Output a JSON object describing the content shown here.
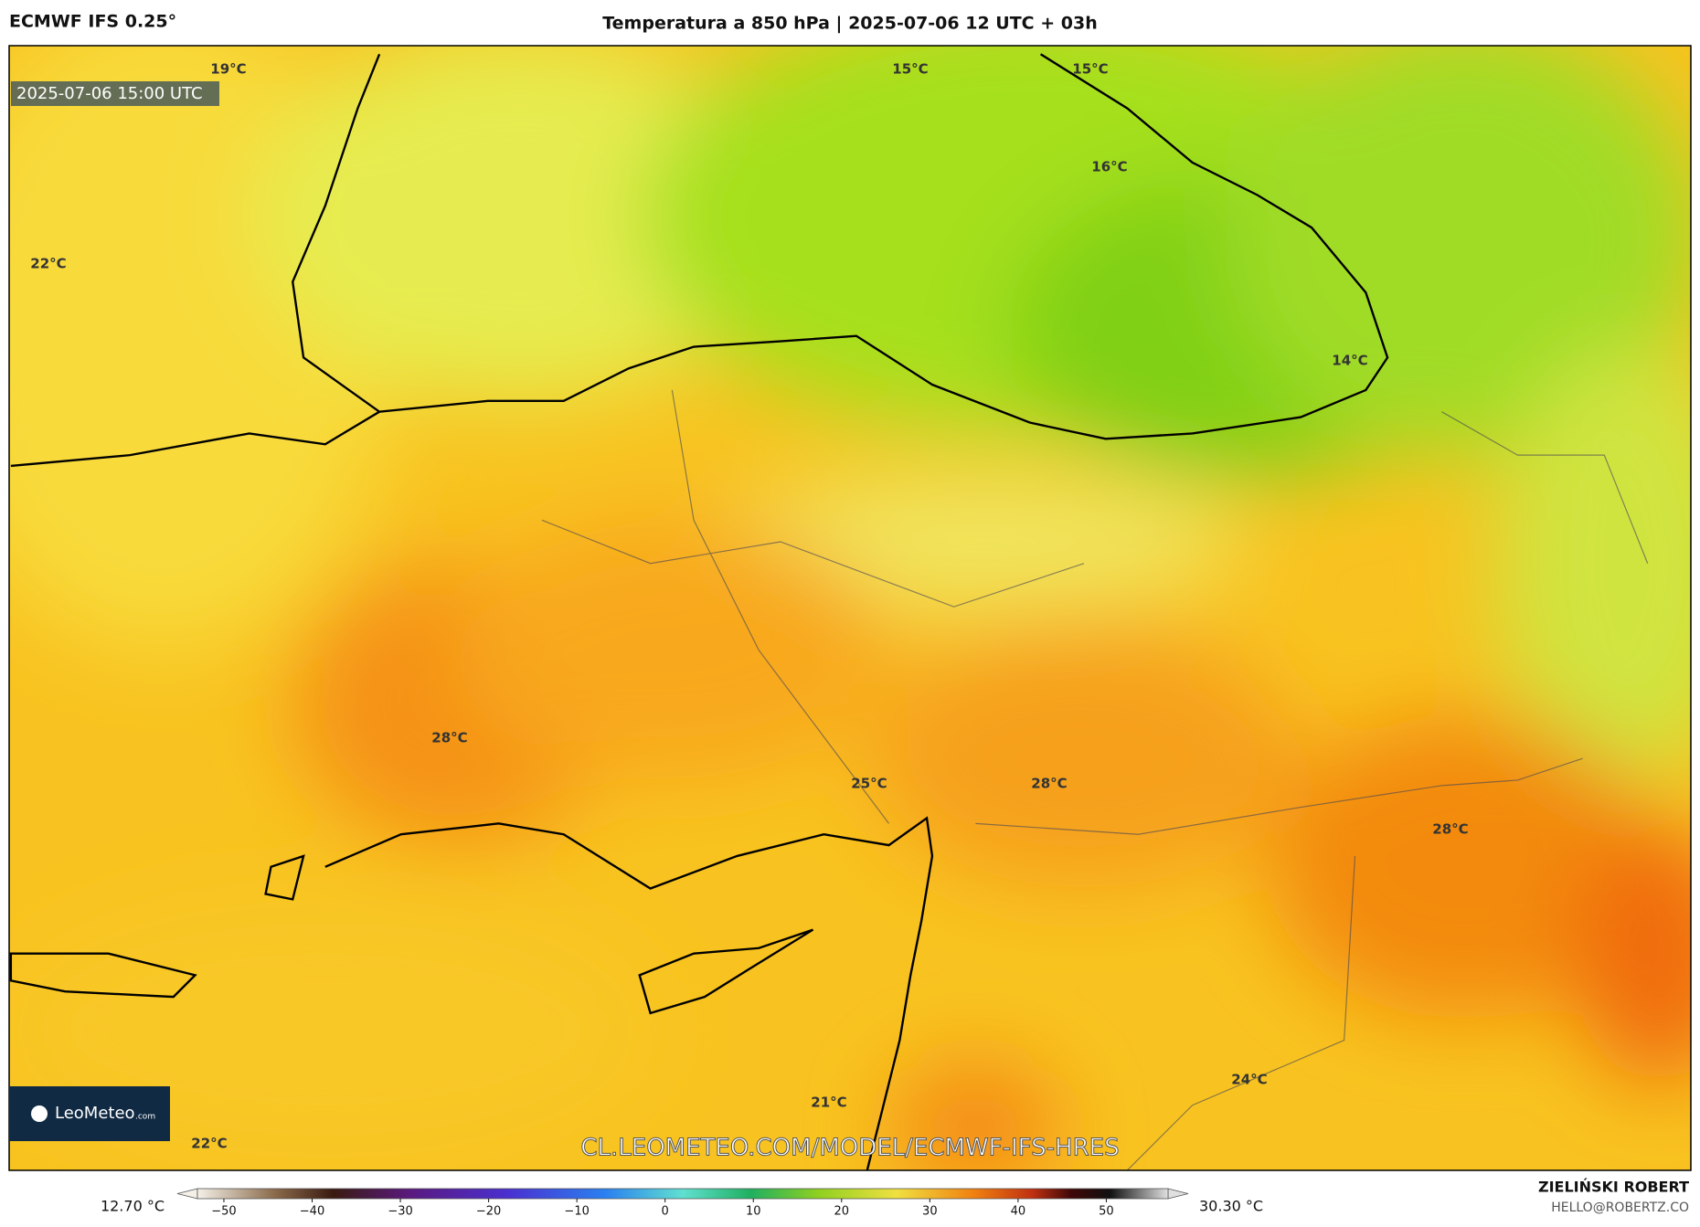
{
  "header": {
    "model": "ECMWF IFS 0.25°",
    "title": "Temperatura a 850 hPa | 2025-07-06 12 UTC + 03h"
  },
  "map": {
    "valid_time": "2025-07-06 15:00 UTC",
    "labels": [
      "19°C",
      "15°C",
      "15°C",
      "16°C",
      "22°C",
      "14°C",
      "28°C",
      "25°C",
      "28°C",
      "28°C",
      "24°C",
      "21°C",
      "22°C"
    ],
    "url": "CL.LEOMETEO.COM/MODEL/ECMWF-IFS-HRES",
    "logo": "LeoMeteo",
    "logo_suffix": ".com"
  },
  "colorbar": {
    "lim": [
      -53,
      57
    ],
    "ticks": [
      {
        "value": -50,
        "label": "−50"
      },
      {
        "value": -40,
        "label": "−40"
      },
      {
        "value": -30,
        "label": "−30"
      },
      {
        "value": -20,
        "label": "−20"
      },
      {
        "value": -10,
        "label": "−10"
      },
      0,
      10,
      20,
      30,
      40,
      50
    ],
    "min_label": "12.70 °C",
    "max_label": "30.30 °C"
  },
  "footer": {
    "author": "ZIELIŃSKI ROBERT",
    "email": "HELLO@ROBERTZ.CO"
  }
}
